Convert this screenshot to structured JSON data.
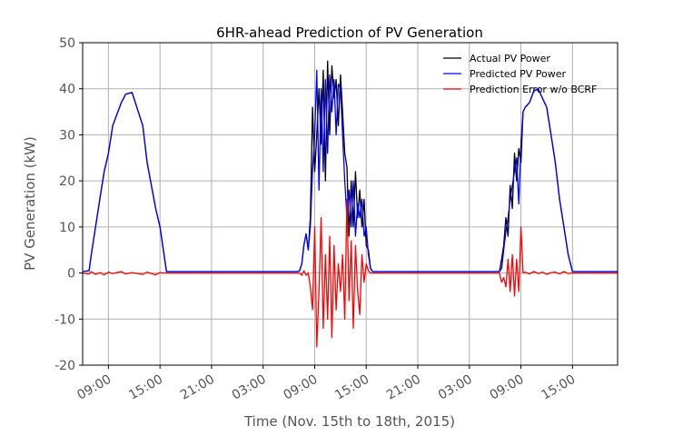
{
  "chart_data": {
    "type": "line",
    "title": "6HR-ahead Prediction of PV Generation",
    "xlabel": "Time (Nov. 15th to 18th, 2015)",
    "ylabel": "PV Generation (kW)",
    "xlim": [
      "2015-11-15T06:00",
      "2015-11-17T20:15"
    ],
    "ylim": [
      -20,
      50
    ],
    "yticks": [
      -20,
      -10,
      0,
      10,
      20,
      30,
      40,
      50
    ],
    "xticks": [
      {
        "t": "2015-11-15T09:00",
        "label": "09:00"
      },
      {
        "t": "2015-11-15T15:00",
        "label": "15:00"
      },
      {
        "t": "2015-11-15T21:00",
        "label": "21:00"
      },
      {
        "t": "2015-11-16T03:00",
        "label": "03:00"
      },
      {
        "t": "2015-11-16T09:00",
        "label": "09:00"
      },
      {
        "t": "2015-11-16T15:00",
        "label": "15:00"
      },
      {
        "t": "2015-11-16T21:00",
        "label": "21:00"
      },
      {
        "t": "2015-11-17T03:00",
        "label": "03:00"
      },
      {
        "t": "2015-11-17T09:00",
        "label": "09:00"
      },
      {
        "t": "2015-11-17T15:00",
        "label": "15:00"
      }
    ],
    "grid": true,
    "legend_position": "top-right",
    "x": [
      "2015-11-15T06:00",
      "2015-11-15T06:45",
      "2015-11-15T07:00",
      "2015-11-15T07:30",
      "2015-11-15T08:00",
      "2015-11-15T08:30",
      "2015-11-15T09:00",
      "2015-11-15T09:30",
      "2015-11-15T10:30",
      "2015-11-15T11:00",
      "2015-11-15T11:45",
      "2015-11-15T13:00",
      "2015-11-15T13:30",
      "2015-11-15T14:30",
      "2015-11-15T15:00",
      "2015-11-15T15:45",
      "2015-11-16T07:00",
      "2015-11-16T07:15",
      "2015-11-16T07:30",
      "2015-11-16T07:45",
      "2015-11-16T08:00",
      "2015-11-16T08:15",
      "2015-11-16T08:30",
      "2015-11-16T08:45",
      "2015-11-16T09:00",
      "2015-11-16T09:15",
      "2015-11-16T09:30",
      "2015-11-16T09:45",
      "2015-11-16T10:00",
      "2015-11-16T10:15",
      "2015-11-16T10:30",
      "2015-11-16T10:45",
      "2015-11-16T11:00",
      "2015-11-16T11:15",
      "2015-11-16T11:30",
      "2015-11-16T11:45",
      "2015-11-16T12:00",
      "2015-11-16T12:15",
      "2015-11-16T12:30",
      "2015-11-16T12:45",
      "2015-11-16T13:00",
      "2015-11-16T13:15",
      "2015-11-16T13:30",
      "2015-11-16T13:45",
      "2015-11-16T14:00",
      "2015-11-16T14:15",
      "2015-11-16T14:30",
      "2015-11-16T14:45",
      "2015-11-16T15:00",
      "2015-11-16T15:15",
      "2015-11-16T15:30",
      "2015-11-16T15:45",
      "2015-11-17T06:30",
      "2015-11-17T06:45",
      "2015-11-17T07:00",
      "2015-11-17T07:15",
      "2015-11-17T07:30",
      "2015-11-17T07:45",
      "2015-11-17T08:00",
      "2015-11-17T08:15",
      "2015-11-17T08:30",
      "2015-11-17T08:45",
      "2015-11-17T09:00",
      "2015-11-17T09:15",
      "2015-11-17T09:30",
      "2015-11-17T10:00",
      "2015-11-17T10:30",
      "2015-11-17T11:00",
      "2015-11-17T11:30",
      "2015-11-17T12:00",
      "2015-11-17T12:30",
      "2015-11-17T13:00",
      "2015-11-17T13:30",
      "2015-11-17T14:00",
      "2015-11-17T14:30",
      "2015-11-17T15:00",
      "2015-11-17T15:45",
      "2015-11-17T20:15"
    ],
    "series": [
      {
        "name": "Actual PV Power",
        "color": "#000000",
        "values": [
          0.3,
          0.5,
          4,
          10,
          16,
          22,
          26,
          32,
          37,
          38.8,
          39.2,
          32,
          24,
          14,
          10,
          0.3,
          0.3,
          0.5,
          2,
          6,
          8.5,
          5,
          12,
          36,
          22,
          30,
          40,
          28,
          44,
          20,
          46,
          30,
          45,
          38,
          42,
          32,
          43,
          35,
          26,
          23,
          8,
          20,
          10,
          22,
          12,
          18,
          10,
          16,
          6,
          5,
          1,
          0.3,
          0.3,
          3,
          6,
          12,
          8,
          19,
          14,
          26,
          20,
          27,
          24,
          35,
          36,
          37,
          39.5,
          40,
          38,
          36,
          30,
          24,
          16,
          10,
          4,
          0.3,
          0.3,
          0.3
        ]
      },
      {
        "name": "Predicted PV Power",
        "color": "#0000ff",
        "values": [
          0.3,
          0.5,
          4,
          10,
          16,
          22,
          26,
          32,
          37,
          38.8,
          39.2,
          32,
          24,
          14,
          10,
          0.3,
          0.3,
          0.5,
          2,
          6,
          8.5,
          5,
          10,
          22,
          30,
          44,
          18,
          40,
          22,
          42,
          26,
          43,
          35,
          42,
          30,
          41,
          40,
          30,
          20,
          12,
          18,
          10,
          20,
          8,
          15,
          12,
          16,
          8,
          10,
          4,
          1,
          0.3,
          0.3,
          1,
          5,
          9,
          12,
          16,
          19,
          22,
          25,
          15,
          28,
          35,
          36,
          37,
          39.5,
          40,
          38,
          36,
          30,
          24,
          16,
          10,
          4,
          0.3,
          0.3,
          0.3
        ]
      },
      {
        "name": "Prediction Error w/o BCRF",
        "color": "#ff0000",
        "values": [
          0,
          -0.2,
          0.3,
          -0.3,
          0.1,
          -0.4,
          0.2,
          -0.1,
          0.3,
          -0.2,
          0.1,
          -0.3,
          0.2,
          -0.4,
          0.1,
          0,
          0,
          0,
          -0.5,
          0.5,
          -0.5,
          0,
          -3,
          -8,
          10,
          -16,
          -4,
          12,
          -12,
          4,
          -10,
          8,
          -14,
          6,
          -8,
          2,
          -4,
          4,
          -10,
          16,
          -6,
          7,
          -12,
          6,
          -4,
          -9,
          4,
          -2,
          2,
          0.5,
          0,
          0,
          0,
          -2,
          -1,
          -3,
          3,
          -4,
          4,
          -5,
          3,
          -4,
          10,
          0,
          0.2,
          -0.2,
          0.3,
          -0.1,
          0.2,
          -0.3,
          0.1,
          0.2,
          -0.2,
          0.3,
          -0.1,
          0,
          0,
          0
        ]
      }
    ]
  }
}
